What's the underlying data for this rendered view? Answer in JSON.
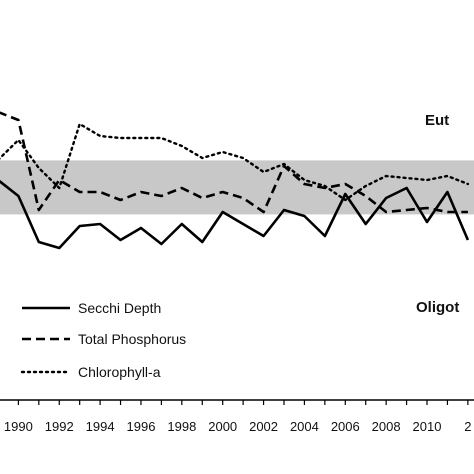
{
  "chart_data": {
    "type": "line",
    "x": [
      1989,
      1990,
      1991,
      1992,
      1993,
      1994,
      1995,
      1996,
      1997,
      1998,
      1999,
      2000,
      2001,
      2002,
      2003,
      2004,
      2005,
      2006,
      2007,
      2008,
      2009,
      2010,
      2011,
      2012
    ],
    "x_tick_labels": [
      "1990",
      "1992",
      "1994",
      "1996",
      "1998",
      "2000",
      "2002",
      "2004",
      "2006",
      "2008",
      "2010",
      "2"
    ],
    "xlim": [
      1989.1,
      2012.3
    ],
    "ylim": [
      0,
      10
    ],
    "grid": false,
    "band": {
      "from": 4.64,
      "to": 5.99,
      "color": "#c8c8c8"
    },
    "series": [
      {
        "name": "Secchi Depth",
        "style": "solid",
        "values": [
          5.5,
          5.1,
          3.95,
          3.8,
          4.35,
          4.4,
          4.0,
          4.3,
          3.9,
          4.4,
          3.95,
          4.7,
          4.4,
          4.1,
          4.75,
          4.6,
          4.1,
          5.15,
          4.4,
          5.05,
          5.3,
          4.45,
          5.2,
          4.0
        ]
      },
      {
        "name": "Total Phosphorus",
        "style": "dashed",
        "values": [
          7.2,
          7.0,
          4.75,
          5.5,
          5.2,
          5.2,
          5.0,
          5.2,
          5.1,
          5.3,
          5.05,
          5.2,
          5.05,
          4.7,
          5.85,
          5.4,
          5.3,
          5.4,
          5.1,
          4.7,
          4.75,
          4.8,
          4.7,
          4.7
        ]
      },
      {
        "name": "Chlorophyll-a",
        "style": "dotted",
        "values": [
          6.0,
          6.5,
          5.8,
          5.3,
          6.9,
          6.6,
          6.55,
          6.55,
          6.55,
          6.35,
          6.05,
          6.2,
          6.05,
          5.7,
          5.9,
          5.5,
          5.35,
          5.0,
          5.35,
          5.6,
          5.55,
          5.5,
          5.6,
          5.4
        ]
      }
    ]
  },
  "annotations": {
    "top": "Eut",
    "bottom": "Oligot"
  },
  "colors": {
    "line": "#000000",
    "band": "#c8c8c8"
  }
}
